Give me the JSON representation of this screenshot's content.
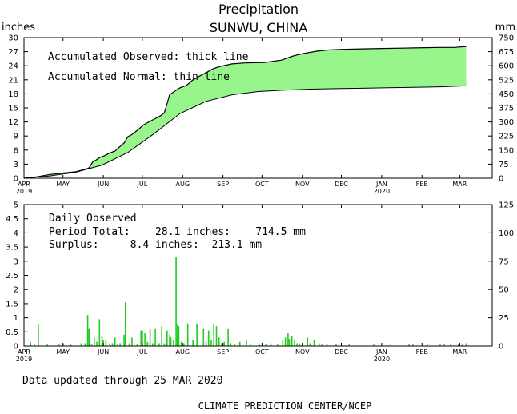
{
  "header": {
    "title": "Precipitation",
    "subtitle": "SUNWU, CHINA",
    "left_unit": "inches",
    "right_unit": "mm"
  },
  "footer": {
    "updated": "Data updated through 25 MAR 2020",
    "credit": "CLIMATE PREDICTION CENTER/NCEP"
  },
  "colors": {
    "fill": "#98f58c",
    "bars": "#22cc22",
    "line": "#000000"
  },
  "chart_data": [
    {
      "type": "area",
      "legend": [
        "Accumulated Observed: thick line",
        "Accumulated Normal: thin line"
      ],
      "months": [
        "APR",
        "MAY",
        "JUN",
        "JUL",
        "AUG",
        "SEP",
        "OCT",
        "NOV",
        "DEC",
        "JAN",
        "FEB",
        "MAR"
      ],
      "year_labels": [
        "2019",
        "2020"
      ],
      "ylim": [
        0,
        30
      ],
      "y_ticks": [
        0,
        3,
        6,
        9,
        12,
        15,
        18,
        21,
        24,
        27,
        30
      ],
      "y2lim": [
        0,
        750
      ],
      "y2_ticks": [
        0,
        75,
        150,
        225,
        300,
        375,
        450,
        525,
        600,
        675,
        750
      ],
      "x_unit": "day of period (Apr 1 2019 = 0)",
      "observed": [
        [
          0,
          0.0
        ],
        [
          10,
          0.3
        ],
        [
          20,
          0.8
        ],
        [
          30,
          1.1
        ],
        [
          40,
          1.4
        ],
        [
          48,
          2.0
        ],
        [
          50,
          2.2
        ],
        [
          53,
          3.5
        ],
        [
          55,
          3.8
        ],
        [
          58,
          4.4
        ],
        [
          62,
          4.8
        ],
        [
          66,
          5.4
        ],
        [
          70,
          5.8
        ],
        [
          74,
          6.8
        ],
        [
          77,
          7.5
        ],
        [
          80,
          8.9
        ],
        [
          83,
          9.3
        ],
        [
          88,
          10.4
        ],
        [
          92,
          11.4
        ],
        [
          96,
          12.0
        ],
        [
          100,
          12.6
        ],
        [
          103,
          13.0
        ],
        [
          106,
          13.5
        ],
        [
          108,
          14.0
        ],
        [
          112,
          17.8
        ],
        [
          115,
          18.4
        ],
        [
          120,
          19.3
        ],
        [
          125,
          19.8
        ],
        [
          130,
          21.0
        ],
        [
          135,
          21.8
        ],
        [
          140,
          22.5
        ],
        [
          145,
          23.3
        ],
        [
          150,
          23.8
        ],
        [
          160,
          24.4
        ],
        [
          170,
          24.6
        ],
        [
          185,
          24.7
        ],
        [
          198,
          25.2
        ],
        [
          202,
          25.6
        ],
        [
          206,
          26.0
        ],
        [
          210,
          26.3
        ],
        [
          215,
          26.6
        ],
        [
          225,
          27.1
        ],
        [
          235,
          27.4
        ],
        [
          245,
          27.5
        ],
        [
          260,
          27.6
        ],
        [
          280,
          27.7
        ],
        [
          300,
          27.8
        ],
        [
          320,
          27.9
        ],
        [
          331,
          27.9
        ],
        [
          340,
          28.1
        ]
      ],
      "normal": [
        [
          0,
          0.0
        ],
        [
          20,
          0.5
        ],
        [
          40,
          1.3
        ],
        [
          60,
          2.8
        ],
        [
          80,
          5.5
        ],
        [
          100,
          9.5
        ],
        [
          120,
          13.8
        ],
        [
          140,
          16.4
        ],
        [
          160,
          17.8
        ],
        [
          180,
          18.5
        ],
        [
          200,
          18.8
        ],
        [
          220,
          19.0
        ],
        [
          240,
          19.1
        ],
        [
          260,
          19.2
        ],
        [
          280,
          19.3
        ],
        [
          300,
          19.4
        ],
        [
          320,
          19.5
        ],
        [
          340,
          19.7
        ]
      ]
    },
    {
      "type": "bar",
      "ylim": [
        0,
        5
      ],
      "y_ticks": [
        0,
        0.5,
        1,
        1.5,
        2,
        2.5,
        3,
        3.5,
        4,
        4.5,
        5
      ],
      "y2lim": [
        0,
        125
      ],
      "y2_ticks": [
        0,
        25,
        50,
        75,
        100,
        125
      ],
      "annotation_title": "Daily Observed",
      "period_total": "Period Total:    28.1 inches:    714.5 mm",
      "surplus": "Surplus:     8.4 inches:  213.1 mm",
      "bars": [
        [
          5,
          0.15
        ],
        [
          8,
          0.05
        ],
        [
          11,
          0.75
        ],
        [
          18,
          0.05
        ],
        [
          27,
          0.05
        ],
        [
          30,
          0.08
        ],
        [
          36,
          0.05
        ],
        [
          44,
          0.1
        ],
        [
          47,
          0.1
        ],
        [
          49,
          1.1
        ],
        [
          50,
          0.6
        ],
        [
          52,
          0.05
        ],
        [
          54,
          0.3
        ],
        [
          56,
          0.15
        ],
        [
          58,
          0.95
        ],
        [
          60,
          0.35
        ],
        [
          61,
          0.2
        ],
        [
          63,
          0.2
        ],
        [
          66,
          0.1
        ],
        [
          68,
          0.1
        ],
        [
          70,
          0.3
        ],
        [
          72,
          0.05
        ],
        [
          74,
          0.1
        ],
        [
          77,
          0.4
        ],
        [
          78,
          1.55
        ],
        [
          81,
          0.1
        ],
        [
          83,
          0.3
        ],
        [
          87,
          0.05
        ],
        [
          90,
          0.55
        ],
        [
          91,
          0.55
        ],
        [
          93,
          0.45
        ],
        [
          95,
          0.15
        ],
        [
          97,
          0.6
        ],
        [
          99,
          0.1
        ],
        [
          101,
          0.6
        ],
        [
          104,
          0.1
        ],
        [
          106,
          0.7
        ],
        [
          108,
          0.1
        ],
        [
          110,
          0.55
        ],
        [
          112,
          0.4
        ],
        [
          113,
          0.3
        ],
        [
          115,
          0.2
        ],
        [
          117,
          3.15
        ],
        [
          118,
          0.75
        ],
        [
          119,
          0.7
        ],
        [
          121,
          0.15
        ],
        [
          123,
          0.1
        ],
        [
          126,
          0.8
        ],
        [
          130,
          0.2
        ],
        [
          133,
          0.8
        ],
        [
          138,
          0.6
        ],
        [
          140,
          0.15
        ],
        [
          142,
          0.55
        ],
        [
          144,
          0.2
        ],
        [
          146,
          0.8
        ],
        [
          148,
          0.7
        ],
        [
          150,
          0.3
        ],
        [
          152,
          0.1
        ],
        [
          154,
          0.15
        ],
        [
          157,
          0.6
        ],
        [
          159,
          0.1
        ],
        [
          162,
          0.05
        ],
        [
          166,
          0.15
        ],
        [
          171,
          0.2
        ],
        [
          174,
          0.05
        ],
        [
          181,
          0.05
        ],
        [
          186,
          0.05
        ],
        [
          190,
          0.1
        ],
        [
          195,
          0.05
        ],
        [
          199,
          0.2
        ],
        [
          201,
          0.3
        ],
        [
          203,
          0.45
        ],
        [
          204,
          0.25
        ],
        [
          206,
          0.35
        ],
        [
          208,
          0.2
        ],
        [
          210,
          0.1
        ],
        [
          212,
          0.05
        ],
        [
          214,
          0.05
        ],
        [
          218,
          0.3
        ],
        [
          220,
          0.1
        ],
        [
          223,
          0.2
        ],
        [
          227,
          0.1
        ],
        [
          229,
          0.05
        ],
        [
          233,
          0.05
        ],
        [
          240,
          0.05
        ],
        [
          250,
          0.05
        ],
        [
          269,
          0.05
        ],
        [
          282,
          0.05
        ],
        [
          296,
          0.05
        ],
        [
          299,
          0.05
        ],
        [
          310,
          0.05
        ],
        [
          320,
          0.05
        ],
        [
          323,
          0.05
        ],
        [
          328,
          0.05
        ],
        [
          334,
          0.05
        ],
        [
          337,
          0.05
        ],
        [
          340,
          0.1
        ]
      ]
    }
  ]
}
